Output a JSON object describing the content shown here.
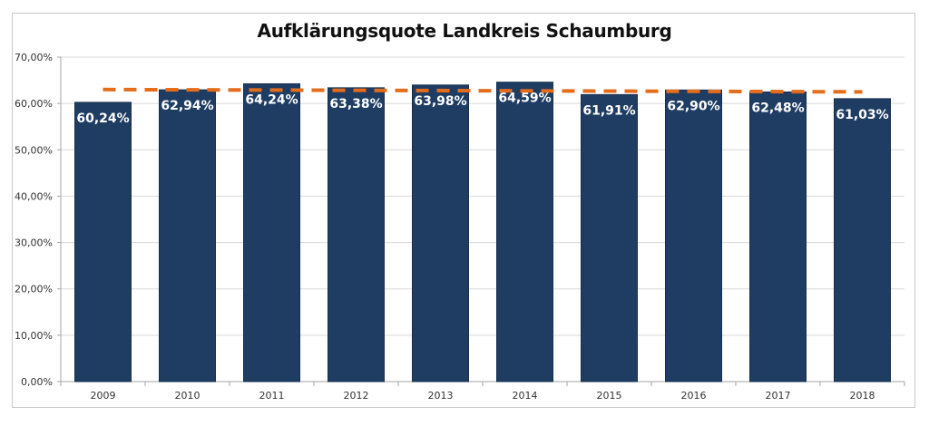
{
  "chart_data": {
    "type": "bar",
    "title": "Aufklärungsquote Landkreis Schaumburg",
    "xlabel": "",
    "ylabel": "",
    "categories": [
      "2009",
      "2010",
      "2011",
      "2012",
      "2013",
      "2014",
      "2015",
      "2016",
      "2017",
      "2018"
    ],
    "values": [
      60.24,
      62.94,
      64.24,
      63.38,
      63.98,
      64.59,
      61.91,
      62.9,
      62.48,
      61.03
    ],
    "data_labels": [
      "60,24%",
      "62,94%",
      "64,24%",
      "63,38%",
      "63,98%",
      "64,59%",
      "61,91%",
      "62,90%",
      "62,48%",
      "61,03%"
    ],
    "ylim": [
      0,
      70
    ],
    "yticks": [
      0,
      10,
      20,
      30,
      40,
      50,
      60,
      70
    ],
    "ytick_labels": [
      "0,00%",
      "10,00%",
      "20,00%",
      "30,00%",
      "40,00%",
      "50,00%",
      "60,00%",
      "70,00%"
    ],
    "grid": true,
    "legend": "none",
    "trendline": {
      "type": "linear",
      "start": 63.0,
      "end": 62.5,
      "style": "dashed"
    },
    "colors": {
      "bar": "#1f3d63",
      "trendline": "#e46c1b",
      "grid": "#d9d9d9",
      "axis": "#a6a6a6"
    }
  }
}
